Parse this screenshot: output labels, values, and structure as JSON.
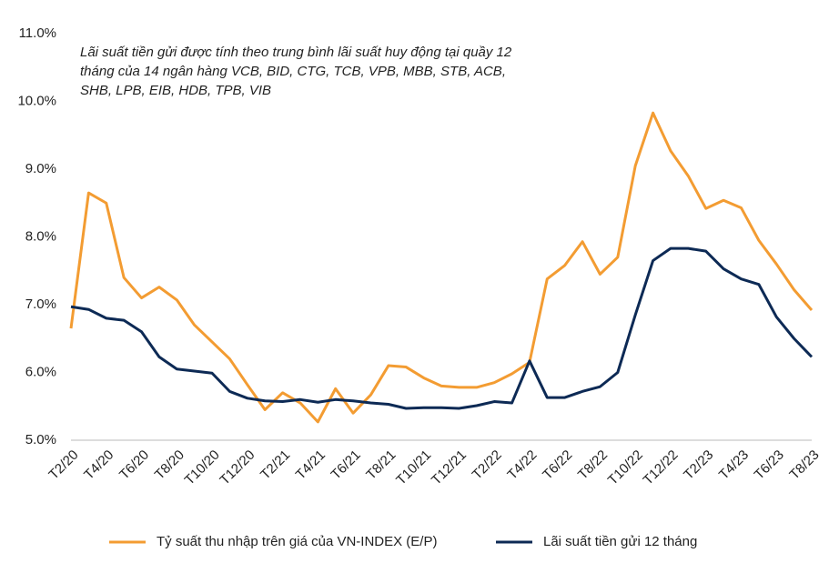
{
  "chart_data": {
    "type": "line",
    "annotation": [
      "Lãi suất tiền gửi được tính theo trung bình lãi suất huy động tại quầy 12",
      "tháng của 14 ngân hàng VCB, BID, CTG, TCB, VPB, MBB, STB, ACB,",
      "SHB, LPB, EIB, HDB, TPB, VIB"
    ],
    "categories": [
      "T2/20",
      null,
      "T4/20",
      null,
      "T6/20",
      null,
      "T8/20",
      null,
      "T10/20",
      null,
      "T12/20",
      null,
      "T2/21",
      null,
      "T4/21",
      null,
      "T6/21",
      null,
      "T8/21",
      null,
      "T10/21",
      null,
      "T12/21",
      null,
      "T2/22",
      null,
      "T4/22",
      null,
      "T6/22",
      null,
      "T8/22",
      null,
      "T10/22",
      null,
      "T12/22",
      null,
      "T2/23",
      null,
      "T4/23",
      null,
      "T6/23",
      null,
      "T8/23"
    ],
    "series": [
      {
        "name": "Tỷ suất thu nhập trên giá của VN-INDEX (E/P)",
        "color": "#f39c32",
        "values": [
          6.65,
          8.65,
          8.5,
          7.4,
          7.1,
          7.26,
          7.07,
          6.7,
          6.45,
          6.2,
          5.82,
          5.45,
          5.7,
          5.55,
          5.27,
          5.76,
          5.4,
          5.67,
          6.1,
          6.08,
          5.92,
          5.8,
          5.78,
          5.78,
          5.85,
          5.98,
          6.15,
          7.38,
          7.58,
          7.93,
          7.45,
          7.7,
          9.05,
          9.83,
          9.27,
          8.9,
          8.42,
          8.54,
          8.43,
          7.95,
          7.6,
          7.22,
          6.92
        ]
      },
      {
        "name": "Lãi suất tiền gửi 12 tháng",
        "color": "#0d2a55",
        "values": [
          6.97,
          6.93,
          6.8,
          6.77,
          6.6,
          6.23,
          6.05,
          6.02,
          5.99,
          5.72,
          5.62,
          5.58,
          5.57,
          5.6,
          5.56,
          5.6,
          5.58,
          5.55,
          5.53,
          5.47,
          5.48,
          5.48,
          5.47,
          5.51,
          5.57,
          5.55,
          6.17,
          5.63,
          5.63,
          5.72,
          5.79,
          6.0,
          6.85,
          7.65,
          7.83,
          7.83,
          7.79,
          7.53,
          7.38,
          7.3,
          6.82,
          6.5,
          6.23
        ]
      }
    ],
    "ylim": [
      5,
      11
    ],
    "yticks": [
      {
        "value": 5,
        "label": "5.0%"
      },
      {
        "value": 6,
        "label": "6.0%"
      },
      {
        "value": 7,
        "label": "7.0%"
      },
      {
        "value": 8,
        "label": "8.0%"
      },
      {
        "value": 9,
        "label": "9.0%"
      },
      {
        "value": 10,
        "label": "10.0%"
      },
      {
        "value": 11,
        "label": "11.0%"
      }
    ],
    "grid": false,
    "legend": "bottom"
  }
}
